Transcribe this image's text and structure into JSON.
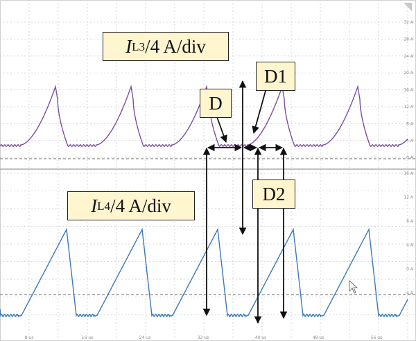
{
  "chart_data": {
    "type": "line",
    "panels": [
      {
        "name": "upper",
        "label": {
          "var": "I",
          "sub": "L3",
          "rest": "/4 A/div"
        },
        "right_ticks": [
          "32 A",
          "28 A",
          "24 A",
          "20 A",
          "16 A",
          "12 A",
          "8 A",
          "4 A",
          "0 A"
        ],
        "color": "#7a4ea0"
      },
      {
        "name": "lower",
        "label": {
          "var": "I",
          "sub": "L4",
          "rest": "/4 A/div"
        },
        "right_ticks": [
          "16 A",
          "12 A",
          "8 A",
          "4 A",
          "0 A",
          "-4 A"
        ],
        "color": "#3a78b8"
      }
    ],
    "x_ticks": [
      "8 us",
      "16 us",
      "24 us",
      "32 us",
      "40 us",
      "48 us",
      "56 us"
    ],
    "annotations": [
      "D",
      "D1",
      "D2"
    ],
    "grid": true
  },
  "colors": {
    "grid": "#d7d7d7",
    "arrow": "#111111",
    "label_bg": "#fff5cf"
  }
}
